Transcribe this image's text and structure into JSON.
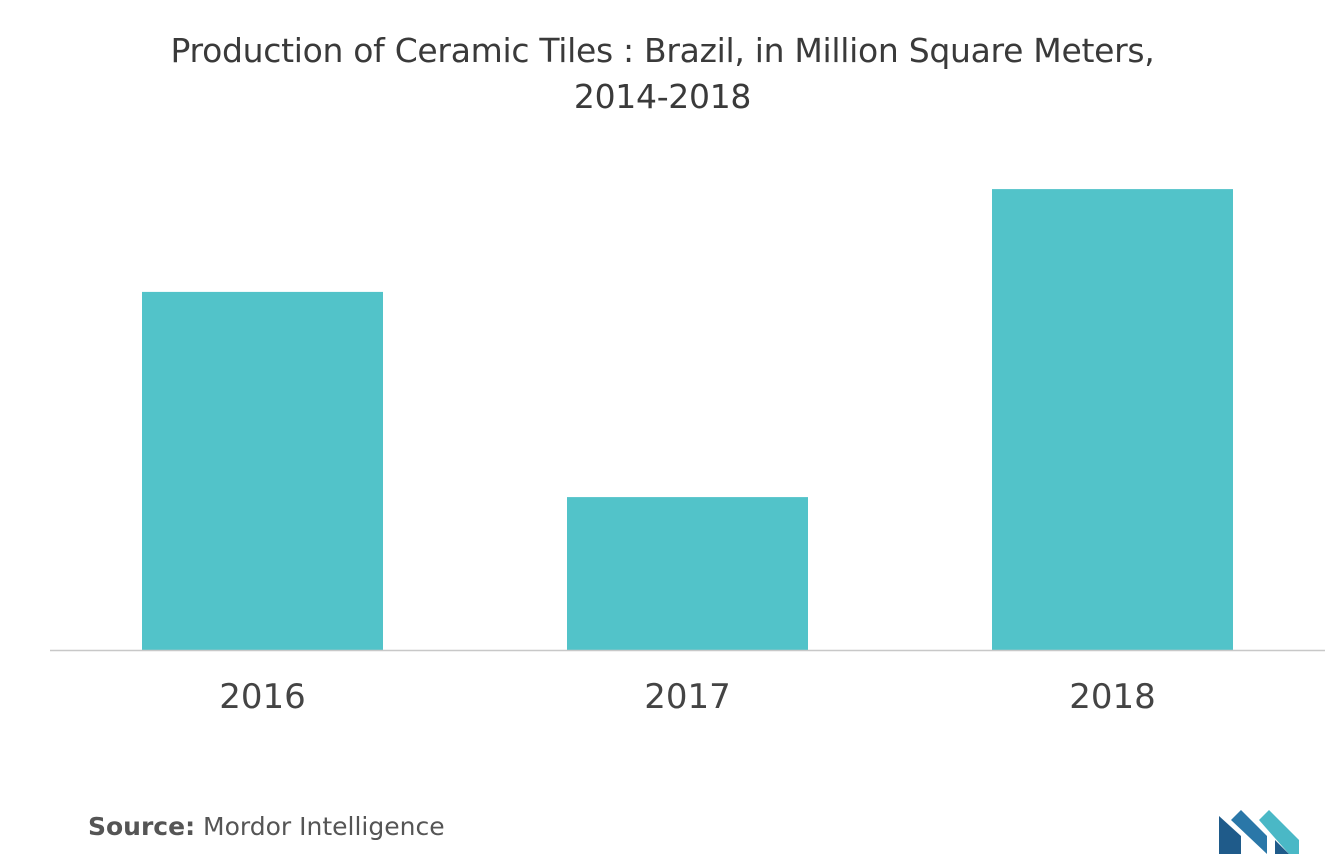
{
  "chart_data": {
    "type": "bar",
    "title_line1": "Production of Ceramic Tiles : Brazil, in Million Square Meters,",
    "title_line2": "2014-2018",
    "categories": [
      "2016",
      "2017",
      "2018"
    ],
    "values": [
      780,
      333,
      1004
    ],
    "ylim": [
      0,
      1100
    ],
    "xlabel": "",
    "ylabel": "",
    "grid": false,
    "legend": "none",
    "bar_color": "#52c3c9",
    "axis_color": "#c8c8c8"
  },
  "footer": {
    "source_label": "Source:",
    "source_value": "Mordor Intelligence"
  },
  "logo": {
    "icon": "mordor-intelligence-logo-icon",
    "colors": [
      "#1f5b8a",
      "#4ab8c6"
    ]
  }
}
